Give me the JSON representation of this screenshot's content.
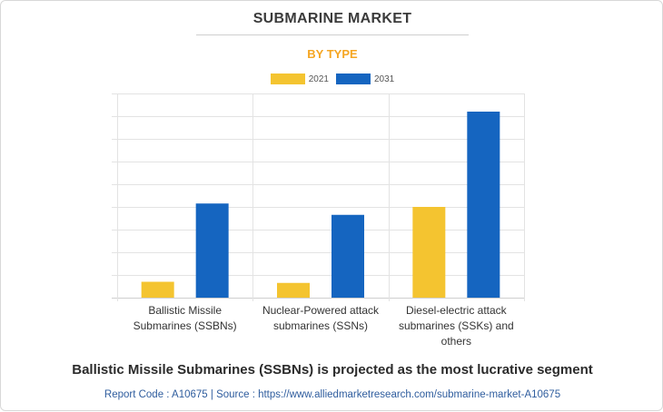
{
  "header": {
    "title": "SUBMARINE MARKET",
    "subtitle": "BY TYPE"
  },
  "footer": {
    "headline": "Ballistic Missile Submarines (SSBNs) is projected as the most lucrative segment",
    "source": "Report Code : A10675  |  Source : https://www.alliedmarketresearch.com/submarine-market-A10675"
  },
  "colors": {
    "series_2021": "#f4c430",
    "series_2031": "#1565c0",
    "grid": "#e3e3e3",
    "title": "#3b3b3b",
    "subtitle": "#f5a623",
    "source": "#2f5d9e"
  },
  "chart_data": {
    "type": "bar",
    "title": "SUBMARINE MARKET",
    "subtitle": "BY TYPE",
    "xlabel": "",
    "ylabel": "",
    "categories": [
      "Ballistic Missile Submarines (SSBNs)",
      "Nuclear-Powered attack submarines (SSNs)",
      "Diesel-electric attack submarines (SSKs) and others"
    ],
    "category_lines": [
      [
        "Ballistic Missile",
        "Submarines (SSBNs)"
      ],
      [
        "Nuclear-Powered attack",
        "submarines (SSNs)"
      ],
      [
        "Diesel-electric attack",
        "submarines (SSKs) and others"
      ]
    ],
    "series": [
      {
        "name": "2021",
        "values": [
          0.7,
          0.65,
          4.0
        ]
      },
      {
        "name": "2031",
        "values": [
          4.15,
          3.65,
          8.2
        ]
      }
    ],
    "ylim": [
      0,
      9
    ],
    "y_gridlines": 9,
    "y_tick_labels_shown": false,
    "grid": true,
    "legend_position": "top-center"
  }
}
